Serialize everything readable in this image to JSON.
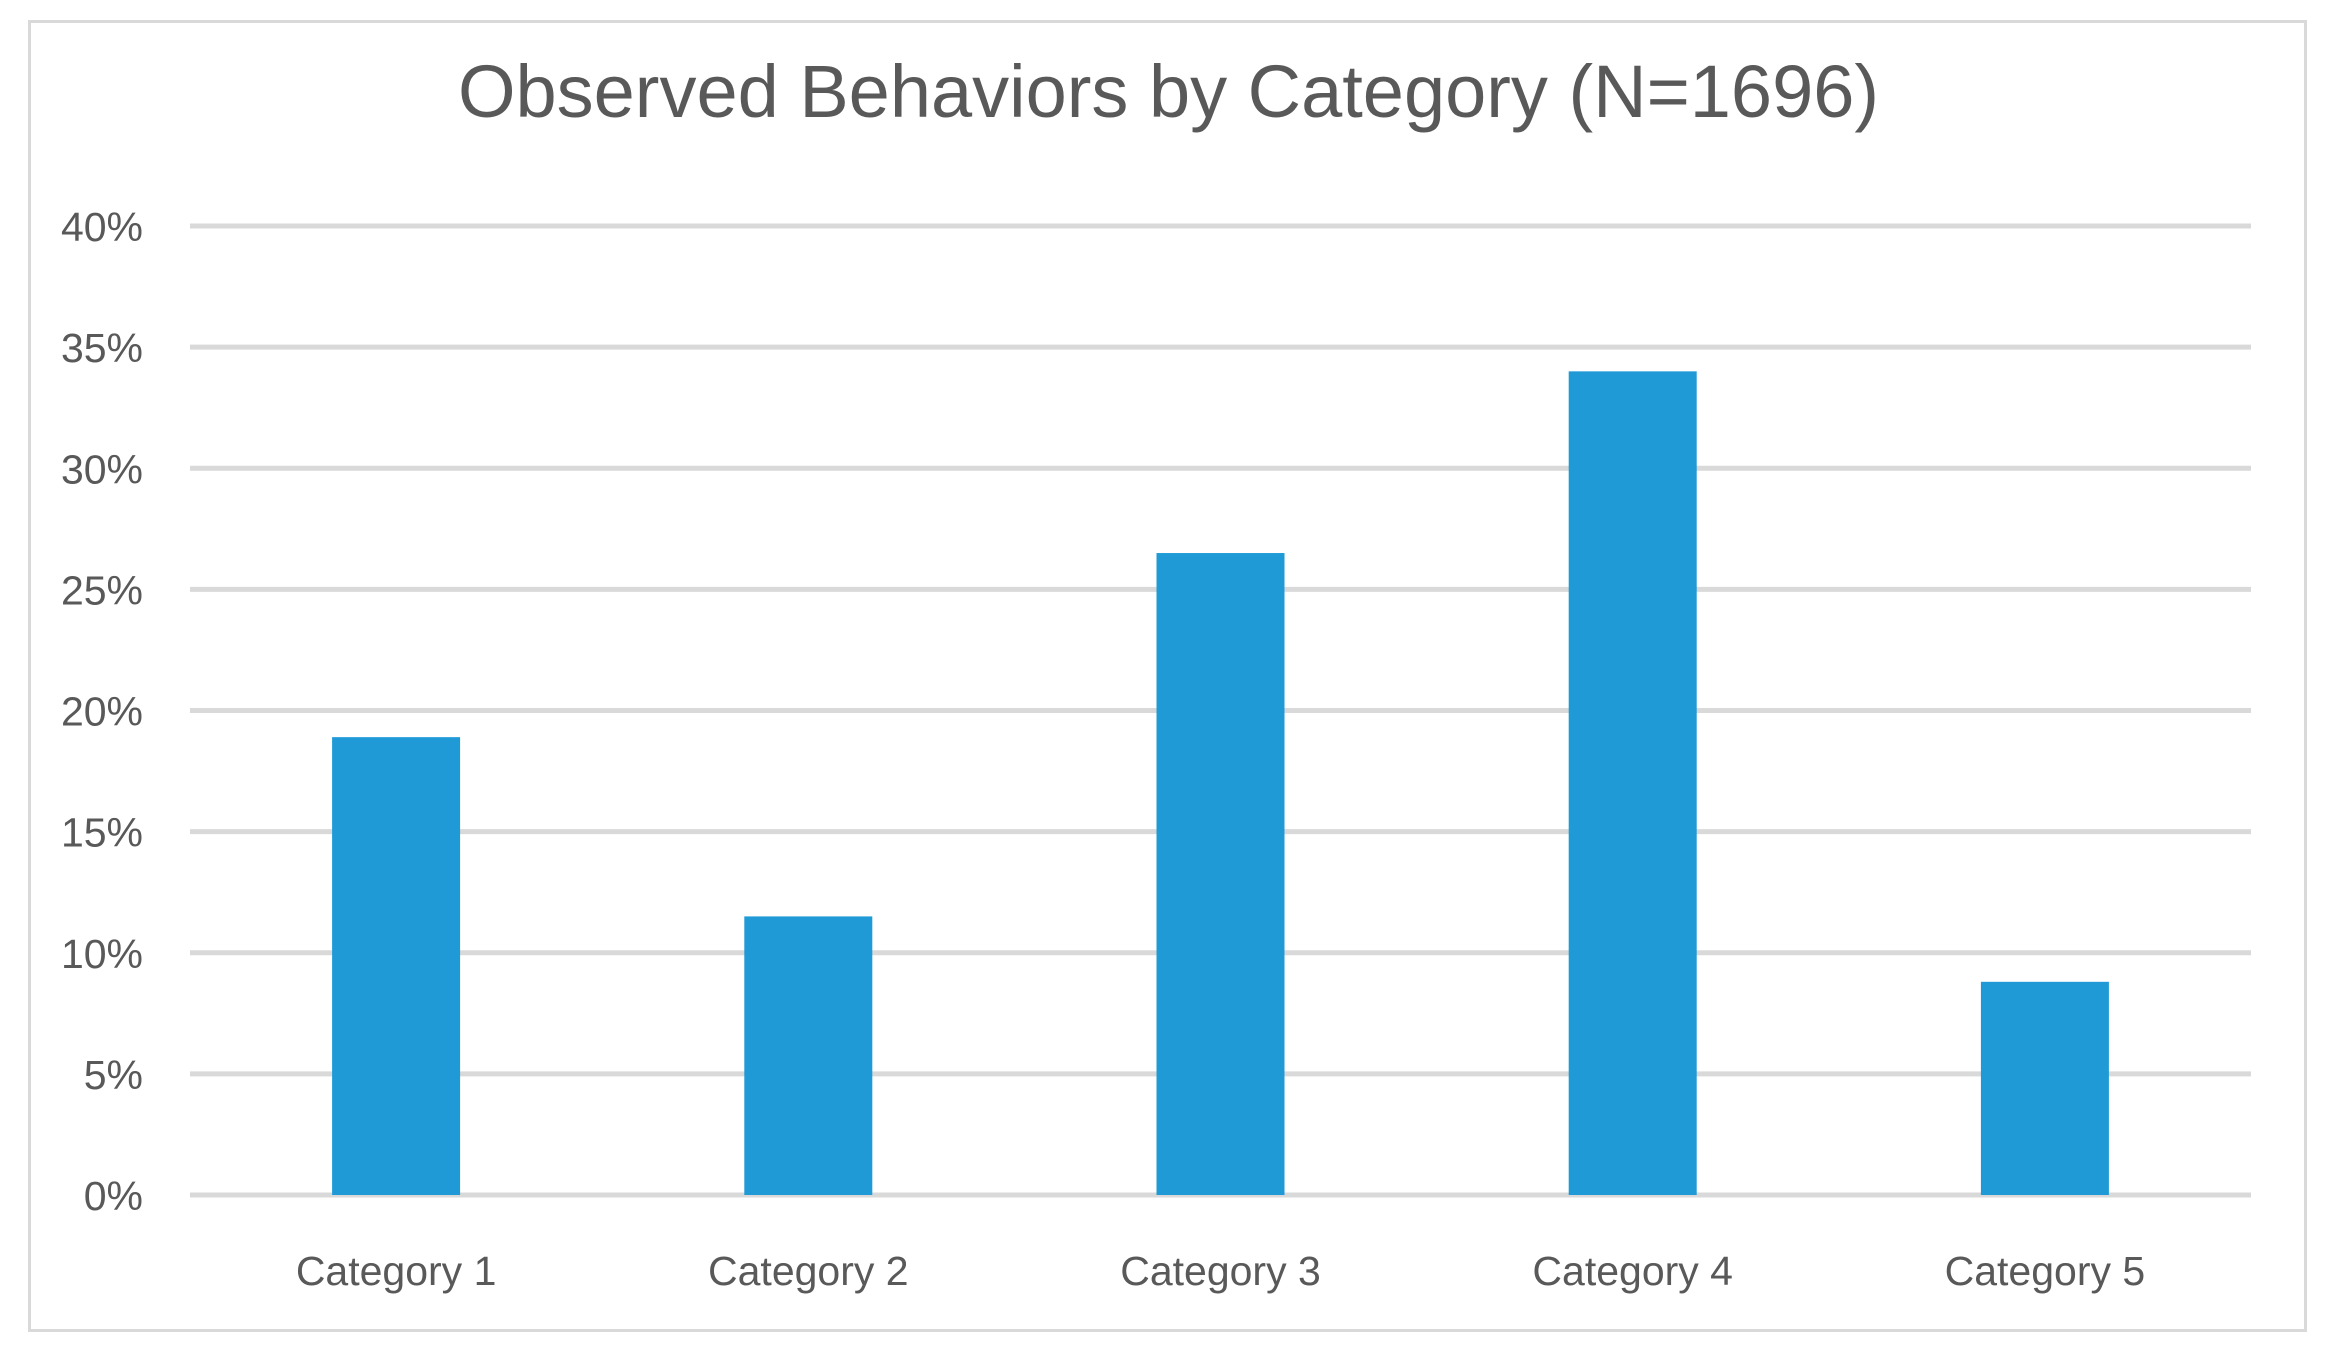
{
  "chart_data": {
    "type": "bar",
    "title": "Observed Behaviors by Category (N=1696)",
    "categories": [
      "Category 1",
      "Category 2",
      "Category 3",
      "Category 4",
      "Category 5"
    ],
    "values": [
      18.9,
      11.5,
      26.5,
      34.0,
      8.8
    ],
    "ylim": [
      0,
      40
    ],
    "yticks": [
      0,
      5,
      10,
      15,
      20,
      25,
      30,
      35,
      40
    ],
    "ytick_labels": [
      "0%",
      "5%",
      "10%",
      "15%",
      "20%",
      "25%",
      "30%",
      "35%",
      "40%"
    ],
    "grid": true,
    "legend": "none",
    "bar_color": "#1f9ad6",
    "grid_color": "#d9d9d9",
    "text_color": "#595959"
  }
}
